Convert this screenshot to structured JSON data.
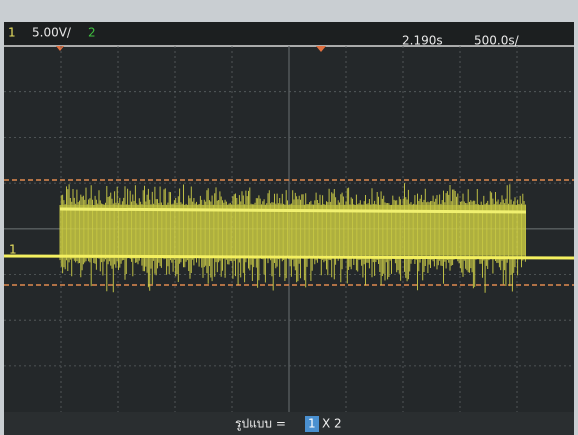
{
  "header": {
    "channel1": "1",
    "scale1": "5.00V/",
    "channel2": "2",
    "delay": "2.190s",
    "timebase": "500.0s/"
  },
  "footer": {
    "label": "รูปแบบ =",
    "selected": "1",
    "rest": "X 2"
  }
}
